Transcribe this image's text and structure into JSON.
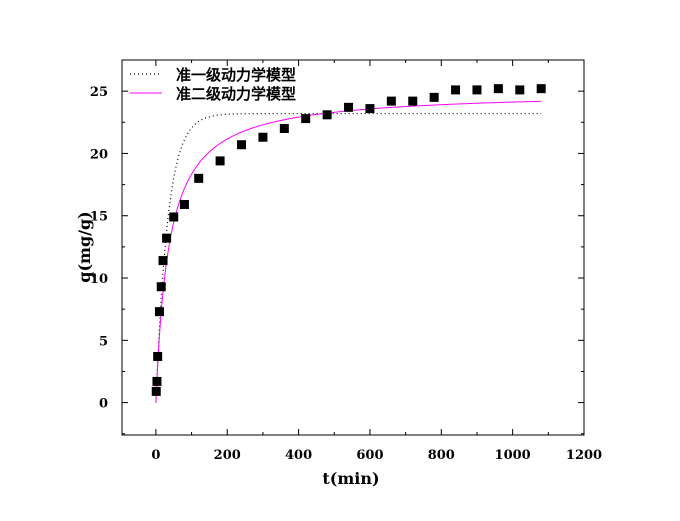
{
  "chart_data": {
    "type": "scatter",
    "xlabel": "t(min)",
    "ylabel": "q(mg/g)",
    "xlim": [
      -95,
      1200
    ],
    "ylim": [
      -2.6,
      27.5
    ],
    "xticks": [
      0,
      200,
      400,
      600,
      800,
      1000,
      1200
    ],
    "yticks": [
      0,
      5,
      10,
      15,
      20,
      25
    ],
    "grid": false,
    "legend": "top-left",
    "series": [
      {
        "kind": "points",
        "marker": "square",
        "color": "#000000",
        "x": [
          1,
          3,
          5,
          10,
          15,
          20,
          30,
          50,
          80,
          120,
          180,
          240,
          300,
          360,
          420,
          480,
          540,
          600,
          660,
          720,
          780,
          840,
          900,
          960,
          1020,
          1080
        ],
        "y": [
          0.9,
          1.7,
          3.7,
          7.3,
          9.3,
          11.4,
          13.2,
          14.9,
          15.9,
          18.0,
          19.4,
          20.7,
          21.3,
          22.0,
          22.8,
          23.1,
          23.7,
          23.6,
          24.2,
          24.2,
          24.5,
          25.1,
          25.1,
          25.2,
          25.1,
          25.2
        ]
      },
      {
        "name": "准一级动力学模型",
        "kind": "line",
        "style": "dotted",
        "color": "#000000",
        "model": "pfo",
        "qe": 23.2,
        "k1": 0.03
      },
      {
        "name": "准二级动力学模型",
        "kind": "line",
        "style": "solid",
        "color": "#ff00ff",
        "model": "pso",
        "qe": 25.0,
        "k2": 0.0011
      }
    ]
  }
}
